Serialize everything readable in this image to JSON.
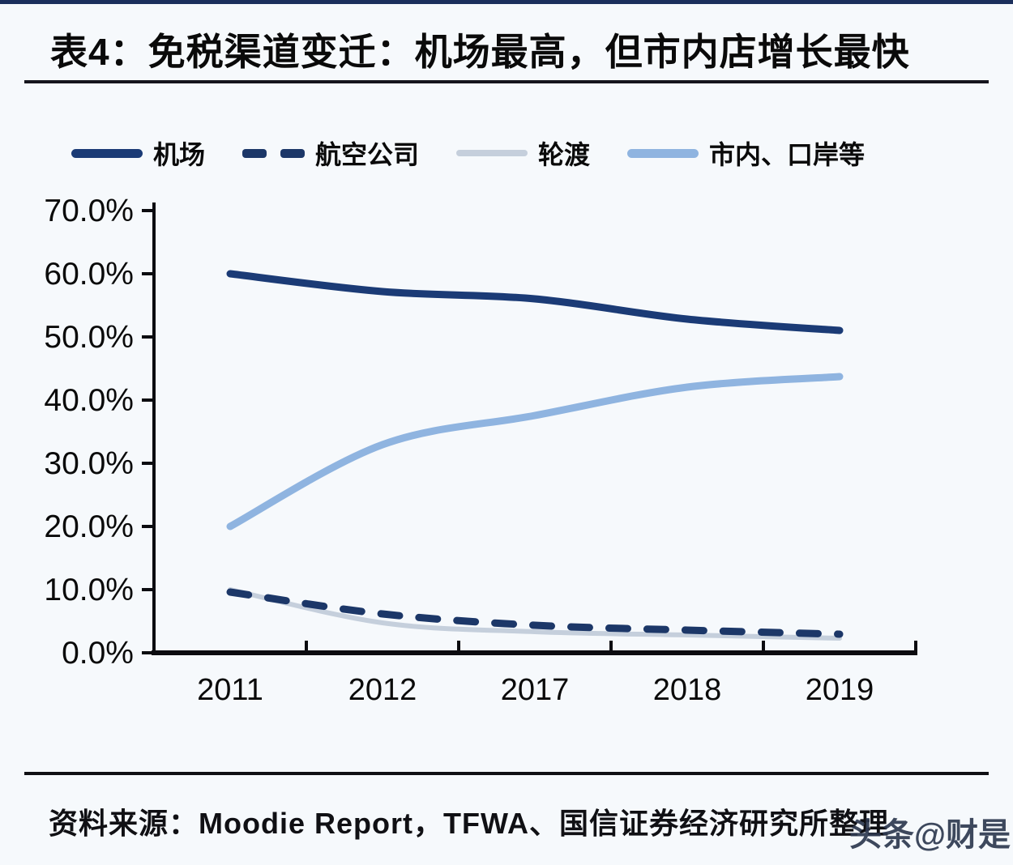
{
  "header": {
    "title": "表4：免税渠道变迁：机场最高，但市内店增长最快"
  },
  "legend": [
    {
      "label": "机场",
      "color": "#1b3b76",
      "style": "solid-thick"
    },
    {
      "label": "航空公司",
      "color": "#1c3768",
      "style": "dashed"
    },
    {
      "label": "轮渡",
      "color": "#c5cfdc",
      "style": "solid-thin"
    },
    {
      "label": "市内、口岸等",
      "color": "#8fb4e0",
      "style": "solid-thick"
    }
  ],
  "chart_data": {
    "type": "line",
    "categories": [
      "2011",
      "2012",
      "2017",
      "2018",
      "2019"
    ],
    "series": [
      {
        "name": "机场",
        "slug": "airport-line",
        "color": "#1b3b76",
        "dash": false,
        "width": 9,
        "values": [
          60.0,
          57.2,
          56.0,
          52.8,
          51.0
        ]
      },
      {
        "name": "航空公司",
        "slug": "airlines-line",
        "color": "#1c3768",
        "dash": true,
        "width": 9,
        "values": [
          9.6,
          6.2,
          4.3,
          3.6,
          3.0
        ]
      },
      {
        "name": "轮渡",
        "slug": "ferry-line",
        "color": "#c5cfdc",
        "dash": false,
        "width": 6,
        "values": [
          10.0,
          4.8,
          3.3,
          2.8,
          2.3
        ]
      },
      {
        "name": "市内、口岸等",
        "slug": "city-port-line",
        "color": "#8fb4e0",
        "dash": false,
        "width": 9,
        "values": [
          20.0,
          33.0,
          37.6,
          42.0,
          43.7
        ]
      }
    ],
    "title": "",
    "xlabel": "",
    "ylabel": "",
    "ylim": [
      0,
      70
    ],
    "ytick_step": 10,
    "ytick_labels": [
      "0.0%",
      "10.0%",
      "20.0%",
      "30.0%",
      "40.0%",
      "50.0%",
      "60.0%",
      "70.0%"
    ],
    "grid": false,
    "legend_position": "top"
  },
  "footer": {
    "source": "资料来源：Moodie Report，TFWA、国信证券经济研究所整理"
  },
  "watermark": "头条@财是"
}
